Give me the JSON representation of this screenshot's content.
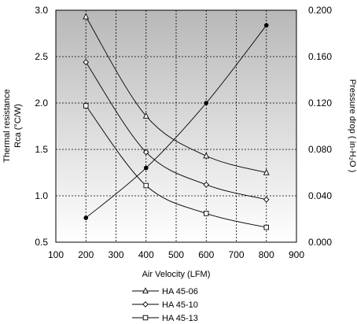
{
  "chart_data": {
    "type": "line",
    "xlabel": "Air Velocity (LFM)",
    "ylabel_left": [
      "Thermal resistance",
      "Rca (°C/W)"
    ],
    "ylabel_right": "Pressure drop ( in-H₂O )",
    "xlim": [
      100,
      900
    ],
    "ylim_left": [
      0.5,
      3.0
    ],
    "ylim_right": [
      0.0,
      0.2
    ],
    "x_ticks": [
      "100",
      "200",
      "300",
      "400",
      "500",
      "600",
      "700",
      "800",
      "900"
    ],
    "y_left_ticks": [
      "0.5",
      "1.0",
      "1.5",
      "2.0",
      "2.5",
      "3.0"
    ],
    "y_right_ticks": [
      "0.000",
      "0.040",
      "0.080",
      "0.120",
      "0.160",
      "0.200"
    ],
    "grid": true,
    "background": "gradient-gray",
    "legend_position": "bottom",
    "x": [
      200,
      400,
      600,
      800
    ],
    "series": [
      {
        "name": "HA 45-06",
        "axis": "left",
        "marker": "triangle",
        "values": [
          2.93,
          1.86,
          1.43,
          1.25
        ]
      },
      {
        "name": "HA 45-10",
        "axis": "left",
        "marker": "diamond",
        "values": [
          2.44,
          1.47,
          1.12,
          0.96
        ]
      },
      {
        "name": "HA 45-13",
        "axis": "left",
        "marker": "square",
        "values": [
          1.97,
          1.11,
          0.81,
          0.66
        ]
      },
      {
        "name": "",
        "axis": "right",
        "marker": "dot",
        "values": [
          0.021,
          0.064,
          0.12,
          0.187
        ]
      }
    ]
  }
}
